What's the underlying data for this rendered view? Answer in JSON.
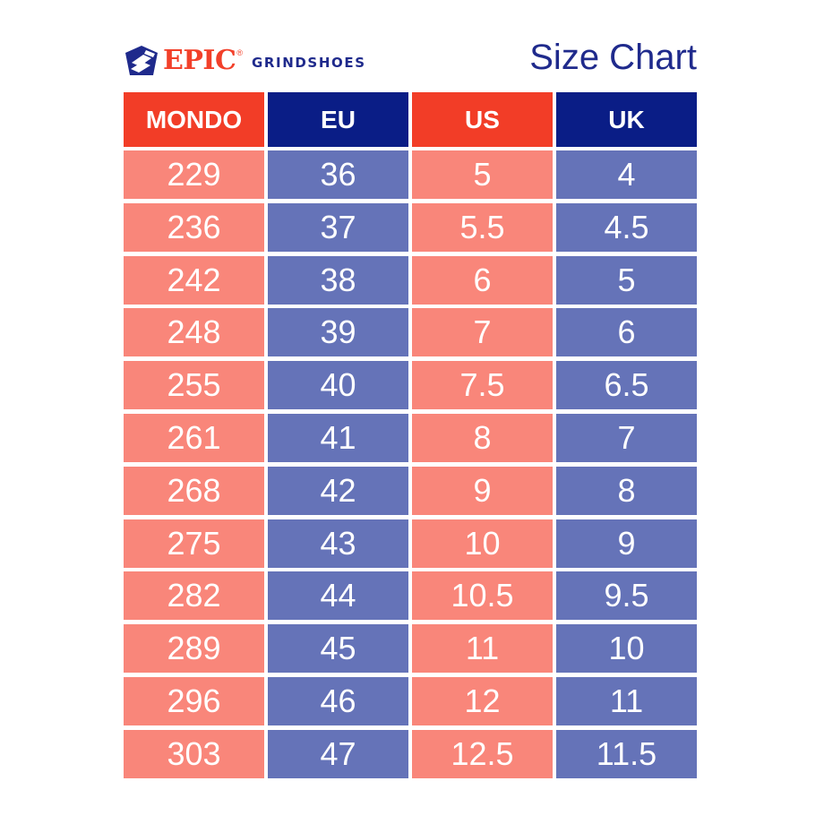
{
  "brand": {
    "name": "EPIC",
    "registered_mark": "®",
    "product_line": "GRINDSHOES",
    "colors": {
      "red": "#f23d27",
      "navy": "#0a1d86"
    },
    "logo_icon": "epic-shield-icon"
  },
  "title": "Size Chart",
  "table": {
    "headers": [
      "MONDO",
      "EU",
      "US",
      "UK"
    ],
    "rows": [
      [
        "229",
        "36",
        "5",
        "4"
      ],
      [
        "236",
        "37",
        "5.5",
        "4.5"
      ],
      [
        "242",
        "38",
        "6",
        "5"
      ],
      [
        "248",
        "39",
        "7",
        "6"
      ],
      [
        "255",
        "40",
        "7.5",
        "6.5"
      ],
      [
        "261",
        "41",
        "8",
        "7"
      ],
      [
        "268",
        "42",
        "9",
        "8"
      ],
      [
        "275",
        "43",
        "10",
        "9"
      ],
      [
        "282",
        "44",
        "10.5",
        "9.5"
      ],
      [
        "289",
        "45",
        "11",
        "10"
      ],
      [
        "296",
        "46",
        "12",
        "11"
      ],
      [
        "303",
        "47",
        "12.5",
        "11.5"
      ]
    ],
    "colors": {
      "header_red": "#f23d27",
      "header_blue": "#0a1d86",
      "cell_red": "#f9867a",
      "cell_blue": "#6573b8"
    }
  }
}
